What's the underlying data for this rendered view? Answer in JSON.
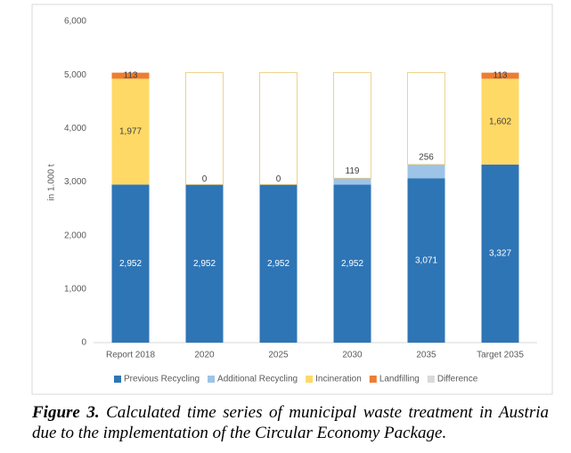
{
  "chart_data": {
    "type": "stacked_bar",
    "categories": [
      "Report 2018",
      "2020",
      "2025",
      "2030",
      "2035",
      "Target 2035"
    ],
    "y_label": "in 1.000 t",
    "ylim": [
      0,
      6000
    ],
    "yticks": [
      0,
      {
        "value": 1000,
        "label": "1,000"
      },
      {
        "value": 2000,
        "label": "2,000"
      },
      {
        "value": 3000,
        "label": "3,000"
      },
      {
        "value": 4000,
        "label": "4,000"
      },
      {
        "value": 5000,
        "label": "5,000"
      },
      {
        "value": 6000,
        "label": "6,000"
      }
    ],
    "grid": false,
    "legend": "bottom",
    "series": [
      {
        "name": "Previous Recycling",
        "color": "#2e75b6",
        "values": [
          2952,
          2952,
          2952,
          2952,
          3071,
          3327
        ],
        "value_labels": [
          "2,952",
          "2,952",
          "2,952",
          "2,952",
          "3,071",
          "3,327"
        ]
      },
      {
        "name": "Additional Recycling",
        "color": "#9dc3e6",
        "values": [
          null,
          0,
          0,
          119,
          256,
          null
        ],
        "value_labels": [
          null,
          "0",
          "0",
          "119",
          "256",
          null
        ]
      },
      {
        "name": "Incineration",
        "color": "#ffd966",
        "values": [
          1977,
          null,
          null,
          null,
          null,
          1602
        ],
        "value_labels": [
          "1,977",
          null,
          null,
          null,
          null,
          "1,602"
        ]
      },
      {
        "name": "Landfilling",
        "color": "#ed7d31",
        "values": [
          113,
          null,
          null,
          null,
          null,
          113
        ],
        "value_labels": [
          "113",
          null,
          null,
          null,
          null,
          "113"
        ]
      },
      {
        "name": "Difference",
        "color": "#d9d9d9",
        "values": [
          null,
          2090,
          2090,
          1971,
          1715,
          null
        ]
      }
    ]
  },
  "caption": {
    "label": "Figure 3.",
    "text": "Calculated time series of municipal waste treatment in Austria due to the implementation of the Circular Economy Package."
  }
}
